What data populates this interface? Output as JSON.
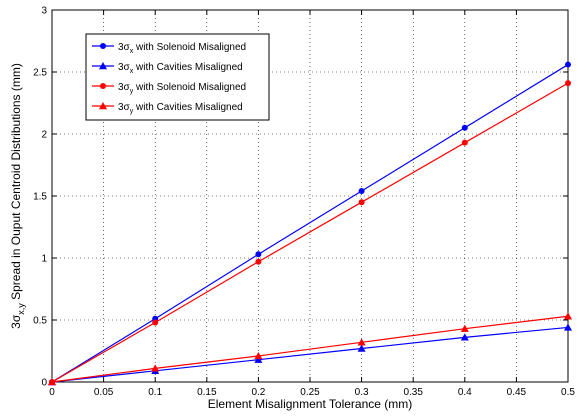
{
  "chart_data": {
    "type": "line",
    "xlabel": "Element Misalignment Tolerance (mm)",
    "ylabel_parts": {
      "pre": "3σ",
      "sub": "x,y",
      "post": " Spread in Ouput Centroid Distributions (mm)"
    },
    "xlim": [
      0,
      0.5
    ],
    "ylim": [
      0,
      3
    ],
    "xticks": [
      "0",
      "0.05",
      "0.1",
      "0.15",
      "0.2",
      "0.25",
      "0.3",
      "0.35",
      "0.4",
      "0.45",
      "0.5"
    ],
    "yticks": [
      "0",
      "0.5",
      "1",
      "1.5",
      "2",
      "2.5",
      "3"
    ],
    "grid": true,
    "legend_position": "top-left",
    "x": [
      0,
      0.1,
      0.2,
      0.3,
      0.4,
      0.5
    ],
    "series": [
      {
        "pre": "3σ",
        "sub": "x",
        "post": " with Solenoid Misaligned",
        "color": "#0000ff",
        "marker": "circle",
        "values": [
          0,
          0.51,
          1.03,
          1.54,
          2.05,
          2.56
        ]
      },
      {
        "pre": "3σ",
        "sub": "x",
        "post": " with Cavities Misaligned",
        "color": "#0000ff",
        "marker": "triangle",
        "values": [
          0,
          0.09,
          0.18,
          0.27,
          0.36,
          0.44
        ]
      },
      {
        "pre": "3σ",
        "sub": "y",
        "post": " with Solenoid Misaligned",
        "color": "#ff0000",
        "marker": "circle",
        "values": [
          0,
          0.48,
          0.97,
          1.45,
          1.93,
          2.41
        ]
      },
      {
        "pre": "3σ",
        "sub": "y",
        "post": " with Cavities Misaligned",
        "color": "#ff0000",
        "marker": "triangle",
        "values": [
          0,
          0.11,
          0.21,
          0.32,
          0.43,
          0.53
        ]
      }
    ]
  }
}
